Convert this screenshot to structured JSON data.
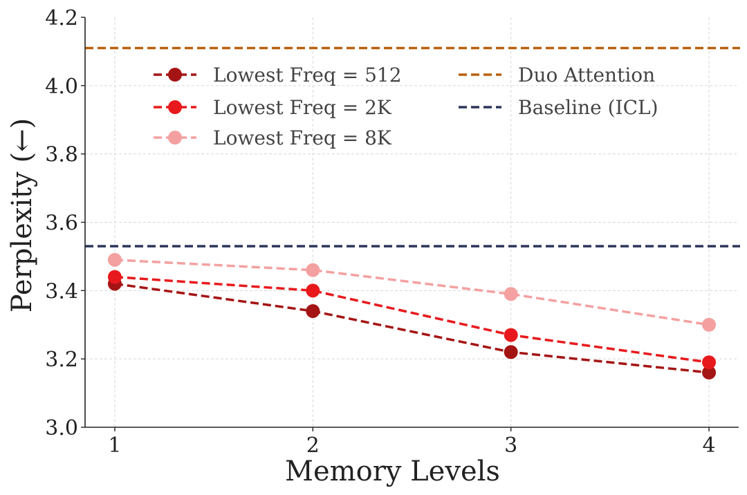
{
  "chart_data": {
    "type": "line",
    "title": "",
    "xlabel": "Memory Levels",
    "ylabel": "Perplexity (←)",
    "x": [
      1,
      2,
      3,
      4
    ],
    "xticks": [
      "1",
      "2",
      "3",
      "4"
    ],
    "xlim": [
      0.85,
      4.15
    ],
    "ylim": [
      3.0,
      4.2
    ],
    "yticks": [
      "3.0",
      "3.2",
      "3.4",
      "3.6",
      "3.8",
      "4.0",
      "4.2"
    ],
    "grid": true,
    "legend_position": "upper-center",
    "series": [
      {
        "name": "Lowest Freq = 512",
        "values": [
          3.42,
          3.34,
          3.22,
          3.16
        ],
        "color": "#a51414",
        "style": "dashed",
        "marker": "circle"
      },
      {
        "name": "Lowest Freq = 2K",
        "values": [
          3.44,
          3.4,
          3.27,
          3.19
        ],
        "color": "#e8191c",
        "style": "dashed",
        "marker": "circle"
      },
      {
        "name": "Lowest Freq = 8K",
        "values": [
          3.49,
          3.46,
          3.39,
          3.3
        ],
        "color": "#f4a0a0",
        "style": "dashed",
        "marker": "circle"
      }
    ],
    "reference_lines": [
      {
        "name": "Duo Attention",
        "value": 4.11,
        "color": "#b8610f",
        "style": "dashed"
      },
      {
        "name": "Baseline (ICL)",
        "value": 3.53,
        "color": "#2d3559",
        "style": "dashed"
      }
    ]
  }
}
